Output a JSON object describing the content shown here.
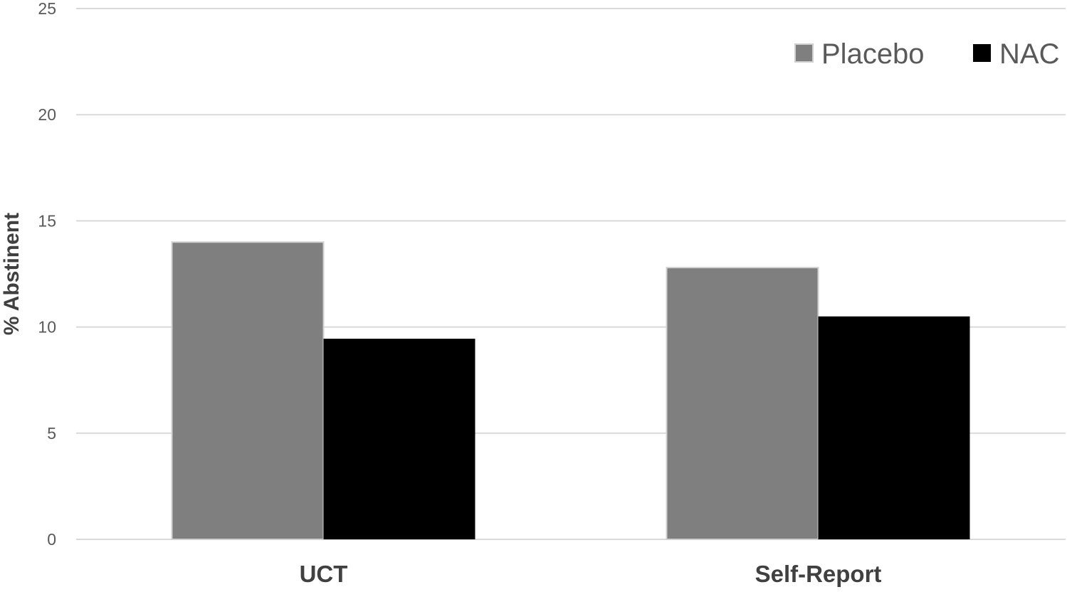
{
  "chart_data": {
    "type": "bar",
    "title": "",
    "xlabel": "",
    "ylabel": "% Abstinent",
    "categories": [
      "UCT",
      "Self-Report"
    ],
    "series": [
      {
        "name": "Placebo",
        "values": [
          14.0,
          12.8
        ],
        "color": "#7f7f7f"
      },
      {
        "name": "NAC",
        "values": [
          9.45,
          10.5
        ],
        "color": "#000000"
      }
    ],
    "ylim": [
      0,
      25
    ],
    "yticks": [
      0,
      5,
      10,
      15,
      20,
      25
    ],
    "grid": true,
    "legend": "top-right"
  }
}
